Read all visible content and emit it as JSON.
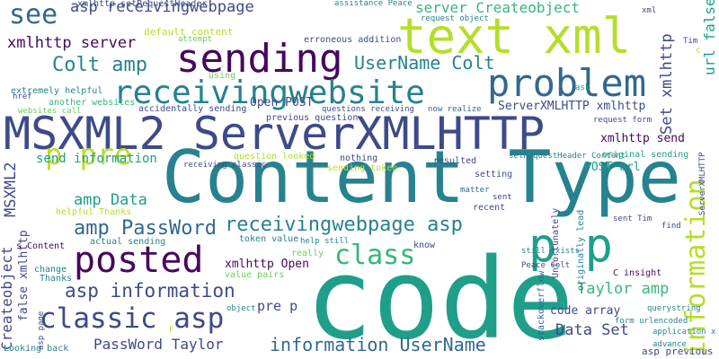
{
  "palette": {
    "purple": "#46085c",
    "indigo": "#3e4a89",
    "blue": "#31688e",
    "teal": "#26828e",
    "seagreen": "#1f9e89",
    "green": "#35b779",
    "lightgreen": "#6ece58",
    "lime": "#b5de2b",
    "yellow": "#fde725"
  },
  "words": [
    {
      "text": "code",
      "color": "seagreen",
      "rotate": false
    },
    {
      "text": "Content Type",
      "color": "teal",
      "rotate": false
    },
    {
      "text": "MSXML2 ServerXMLHTTP",
      "color": "indigo",
      "rotate": false
    },
    {
      "text": "text xml",
      "color": "lime",
      "rotate": false
    },
    {
      "text": "p p",
      "color": "seagreen",
      "rotate": false
    },
    {
      "text": "sending",
      "color": "purple",
      "rotate": false
    },
    {
      "text": "posted",
      "color": "purple",
      "rotate": false
    },
    {
      "text": "problem",
      "color": "blue",
      "rotate": false
    },
    {
      "text": "receivingwebsite",
      "color": "teal",
      "rotate": false
    },
    {
      "text": "information",
      "color": "lime",
      "rotate": true
    },
    {
      "text": "p pre",
      "color": "lime",
      "rotate": false
    },
    {
      "text": "classic asp",
      "color": "indigo",
      "rotate": false
    },
    {
      "text": "see",
      "color": "blue",
      "rotate": false
    },
    {
      "text": "receivingwebpage asp",
      "color": "teal",
      "rotate": false
    },
    {
      "text": "class",
      "color": "green",
      "rotate": false
    },
    {
      "text": "amp PassWord",
      "color": "blue",
      "rotate": false
    },
    {
      "text": "asp information",
      "color": "indigo",
      "rotate": false
    },
    {
      "text": "information UserName",
      "color": "blue",
      "rotate": false
    },
    {
      "text": "Colt amp",
      "color": "teal",
      "rotate": false
    },
    {
      "text": "UserName Colt",
      "color": "teal",
      "rotate": false
    },
    {
      "text": "asp receivingwebpage",
      "color": "indigo",
      "rotate": false
    },
    {
      "text": "xmlhttp server",
      "color": "purple",
      "rotate": false
    },
    {
      "text": "server Createobject",
      "color": "green",
      "rotate": false
    },
    {
      "text": "Taylor amp",
      "color": "green",
      "rotate": false
    },
    {
      "text": "PassWord Taylor",
      "color": "indigo",
      "rotate": false
    },
    {
      "text": "Data Set",
      "color": "indigo",
      "rotate": false
    },
    {
      "text": "amp Data",
      "color": "seagreen",
      "rotate": false
    },
    {
      "text": "Set xmlhttp",
      "color": "indigo",
      "rotate": true
    },
    {
      "text": "xmlhttp Open",
      "color": "purple",
      "rotate": false
    },
    {
      "text": "MSXML2",
      "color": "indigo",
      "rotate": true
    },
    {
      "text": "Createobject",
      "color": "indigo",
      "rotate": true
    },
    {
      "text": "url false",
      "color": "seagreen",
      "rotate": true
    },
    {
      "text": "xmlhttp send",
      "color": "purple",
      "rotate": false
    },
    {
      "text": "pre p",
      "color": "indigo",
      "rotate": false
    },
    {
      "text": "code array",
      "color": "indigo",
      "rotate": false
    },
    {
      "text": "send information",
      "color": "seagreen",
      "rotate": false
    },
    {
      "text": "ServerXMLHTTP xmlhttp",
      "color": "indigo",
      "rotate": false
    },
    {
      "text": "Open POST",
      "color": "indigo",
      "rotate": false
    },
    {
      "text": "POST url",
      "color": "seagreen",
      "rotate": false
    },
    {
      "text": "false xmlhttp",
      "color": "indigo",
      "rotate": true
    },
    {
      "text": "stackoverflow",
      "color": "blue",
      "rotate": true
    },
    {
      "text": "asp previous",
      "color": "indigo",
      "rotate": false
    },
    {
      "text": "default content",
      "color": "lime",
      "rotate": false
    },
    {
      "text": "xmlhttp setRequestHeader",
      "color": "indigo",
      "rotate": false
    },
    {
      "text": "assistance Peace",
      "color": "teal",
      "rotate": false
    },
    {
      "text": "request object",
      "color": "teal",
      "rotate": false
    },
    {
      "text": "xml",
      "color": "indigo",
      "rotate": false
    },
    {
      "text": "Tim",
      "color": "indigo",
      "rotate": false
    },
    {
      "text": "erroneous addition",
      "color": "indigo",
      "rotate": false
    },
    {
      "text": "attempt",
      "color": "lightgreen",
      "rotate": false
    },
    {
      "text": "ask",
      "color": "seagreen",
      "rotate": false
    },
    {
      "text": "using",
      "color": "lightgreen",
      "rotate": false
    },
    {
      "text": "extremely helpful",
      "color": "teal",
      "rotate": false
    },
    {
      "text": "another websites",
      "color": "green",
      "rotate": false
    },
    {
      "text": "href",
      "color": "indigo",
      "rotate": false
    },
    {
      "text": "accidentally sending",
      "color": "indigo",
      "rotate": false
    },
    {
      "text": "websites call",
      "color": "lightgreen",
      "rotate": false
    },
    {
      "text": "previous question",
      "color": "indigo",
      "rotate": false
    },
    {
      "text": "questions receiving",
      "color": "indigo",
      "rotate": false
    },
    {
      "text": "now realize",
      "color": "blue",
      "rotate": false
    },
    {
      "text": "request form",
      "color": "indigo",
      "rotate": false
    },
    {
      "text": "question looked",
      "color": "lime",
      "rotate": false
    },
    {
      "text": "receiving classic",
      "color": "indigo",
      "rotate": false
    },
    {
      "text": "nothing",
      "color": "indigo",
      "rotate": false
    },
    {
      "text": "sending token",
      "color": "lime",
      "rotate": false
    },
    {
      "text": "resulted",
      "color": "indigo",
      "rotate": false
    },
    {
      "text": "setRequestHeader Content",
      "color": "teal",
      "rotate": false
    },
    {
      "text": "original sending",
      "color": "seagreen",
      "rotate": false
    },
    {
      "text": "setting",
      "color": "indigo",
      "rotate": false
    },
    {
      "text": "matter",
      "color": "blue",
      "rotate": false
    },
    {
      "text": "recent",
      "color": "indigo",
      "rotate": false
    },
    {
      "text": "sent",
      "color": "indigo",
      "rotate": false
    },
    {
      "text": "sent Tim",
      "color": "indigo",
      "rotate": false
    },
    {
      "text": "find",
      "color": "indigo",
      "rotate": false
    },
    {
      "text": "helpful Thanks",
      "color": "lime",
      "rotate": false
    },
    {
      "text": "s Content",
      "color": "purple",
      "rotate": false
    },
    {
      "text": "actual sending",
      "color": "teal",
      "rotate": false
    },
    {
      "text": "token value",
      "color": "teal",
      "rotate": false
    },
    {
      "text": "help still",
      "color": "teal",
      "rotate": false
    },
    {
      "text": "know",
      "color": "indigo",
      "rotate": false
    },
    {
      "text": "still exists",
      "color": "teal",
      "rotate": false
    },
    {
      "text": "really",
      "color": "lightgreen",
      "rotate": false
    },
    {
      "text": "change",
      "color": "teal",
      "rotate": false
    },
    {
      "text": "Thanks",
      "color": "teal",
      "rotate": false
    },
    {
      "text": "value pairs",
      "color": "lightgreen",
      "rotate": false
    },
    {
      "text": "Peace Colt",
      "color": "indigo",
      "rotate": false
    },
    {
      "text": "C insight",
      "color": "purple",
      "rotate": false
    },
    {
      "text": "object",
      "color": "teal",
      "rotate": false
    },
    {
      "text": "querystring",
      "color": "teal",
      "rotate": false
    },
    {
      "text": "form urlencoded",
      "color": "teal",
      "rotate": false
    },
    {
      "text": "application x",
      "color": "teal",
      "rotate": false
    },
    {
      "text": "advance",
      "color": "teal",
      "rotate": false
    },
    {
      "text": "Looking back",
      "color": "teal",
      "rotate": false
    },
    {
      "text": "asp page",
      "color": "indigo",
      "rotate": true
    },
    {
      "text": "originally lead",
      "color": "teal",
      "rotate": true
    },
    {
      "text": "Unfortunately",
      "color": "indigo",
      "rotate": true
    },
    {
      "text": "ServerXMLHTTP",
      "color": "indigo",
      "rotate": true
    },
    {
      "text": "F",
      "color": "lime",
      "rotate": false
    },
    {
      "text": "c",
      "color": "lime",
      "rotate": false
    }
  ]
}
